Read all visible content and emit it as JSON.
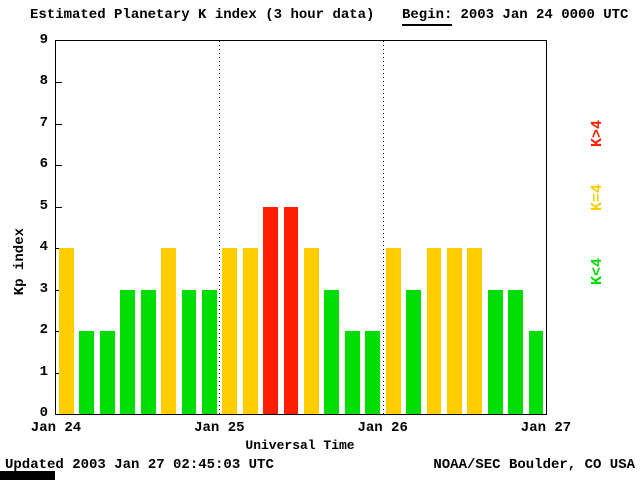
{
  "header": {
    "title": "Estimated Planetary K index (3 hour data)",
    "begin_label": "Begin:",
    "begin_value": "2003 Jan 24 0000 UTC"
  },
  "chart_data": {
    "type": "bar",
    "title": "Estimated Planetary K index (3 hour data)",
    "xlabel": "Universal Time",
    "ylabel": "Kp index",
    "ylim": [
      0,
      9
    ],
    "yticks": [
      0,
      1,
      2,
      3,
      4,
      5,
      6,
      7,
      8,
      9
    ],
    "x_day_labels": [
      "Jan 24",
      "Jan 25",
      "Jan 26",
      "Jan 27"
    ],
    "bars_per_day": 8,
    "values": [
      4,
      2,
      2,
      3,
      3,
      4,
      3,
      3,
      4,
      4,
      5,
      5,
      4,
      3,
      2,
      2,
      4,
      3,
      4,
      4,
      4,
      3,
      3,
      2
    ],
    "colors": {
      "low": "#00dd00",
      "mid": "#ffcc00",
      "high": "#ff1e00"
    },
    "color_rule": "green when K<4, yellow when K=4, red when K>4",
    "legend": [
      {
        "label": "K>4",
        "color": "#ff1e00"
      },
      {
        "label": "K=4",
        "color": "#ffcc00"
      },
      {
        "label": "K<4",
        "color": "#00dd00"
      }
    ],
    "grid": "dotted vertical separators at day boundaries",
    "legend_position": "right"
  },
  "footer": {
    "updated": "Updated 2003 Jan 27 02:45:03 UTC",
    "source": "NOAA/SEC Boulder, CO USA"
  }
}
